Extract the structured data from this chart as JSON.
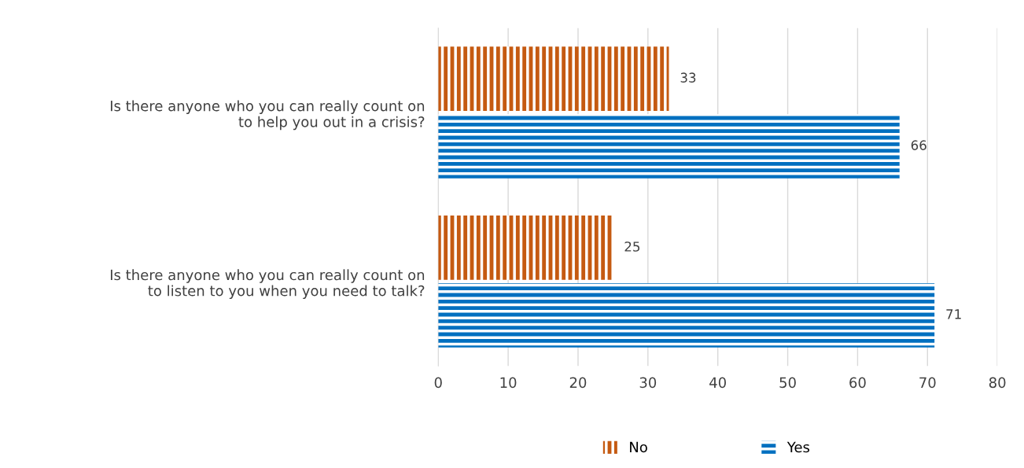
{
  "chart_data": {
    "type": "bar",
    "orientation": "horizontal",
    "categories": [
      "Is there anyone who you can really count on to help you out in a crisis?",
      "Is there anyone who you can really count on to listen to you when you need to talk?"
    ],
    "series": [
      {
        "name": "No",
        "color": "#c55a11",
        "values": [
          33,
          25
        ]
      },
      {
        "name": "Yes",
        "color": "#0070c0",
        "values": [
          66,
          71
        ]
      }
    ],
    "xlim": [
      0,
      80
    ],
    "xticks": [
      0,
      10,
      20,
      30,
      40,
      50,
      60,
      70,
      80
    ],
    "grid": "x",
    "legend": "bottom",
    "data_labels": true
  }
}
